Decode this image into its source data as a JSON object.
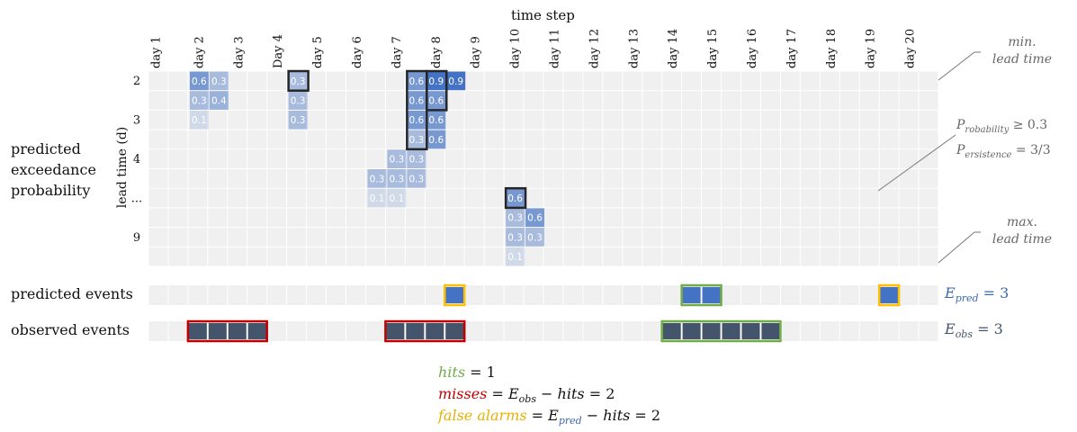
{
  "header": {
    "time_step_label": "time step"
  },
  "days": [
    "day 1",
    "day 2",
    "day 3",
    "Day 4",
    "day 5",
    "day 6",
    "day 7",
    "day 8",
    "day 9",
    "day 10",
    "day 11",
    "day 12",
    "day 13",
    "day 14",
    "day 15",
    "day 16",
    "day 17",
    "day 18",
    "day 19",
    "day 20"
  ],
  "y_axis": {
    "label": "lead time (d)",
    "ticks": [
      {
        "row": 0,
        "text": "2"
      },
      {
        "row": 2,
        "text": "3"
      },
      {
        "row": 4,
        "text": "4"
      },
      {
        "row": 6,
        "text": "..."
      },
      {
        "row": 8,
        "text": "9"
      }
    ]
  },
  "row_labels": {
    "probability": "predicted exceedance probability",
    "predicted": "predicted events",
    "observed": "observed events"
  },
  "probability_cells": [
    {
      "day": 3,
      "lead": 0,
      "value": "0.6"
    },
    {
      "day": 4,
      "lead": 0,
      "value": "0.3"
    },
    {
      "day": 3,
      "lead": 1,
      "value": "0.3"
    },
    {
      "day": 4,
      "lead": 1,
      "value": "0.4"
    },
    {
      "day": 3,
      "lead": 2,
      "value": "0.1"
    },
    {
      "day": 8,
      "lead": 0,
      "value": "0.3"
    },
    {
      "day": 8,
      "lead": 1,
      "value": "0.3"
    },
    {
      "day": 8,
      "lead": 2,
      "value": "0.3"
    },
    {
      "day": 14,
      "lead": 0,
      "value": "0.6"
    },
    {
      "day": 15,
      "lead": 0,
      "value": "0.9"
    },
    {
      "day": 16,
      "lead": 0,
      "value": "0.9"
    },
    {
      "day": 14,
      "lead": 1,
      "value": "0.6"
    },
    {
      "day": 15,
      "lead": 1,
      "value": "0.6"
    },
    {
      "day": 14,
      "lead": 2,
      "value": "0.6"
    },
    {
      "day": 15,
      "lead": 2,
      "value": "0.6"
    },
    {
      "day": 14,
      "lead": 3,
      "value": "0.3"
    },
    {
      "day": 15,
      "lead": 3,
      "value": "0.6"
    },
    {
      "day": 13,
      "lead": 4,
      "value": "0.3"
    },
    {
      "day": 14,
      "lead": 4,
      "value": "0.3"
    },
    {
      "day": 12,
      "lead": 5,
      "value": "0.3"
    },
    {
      "day": 13,
      "lead": 5,
      "value": "0.3"
    },
    {
      "day": 14,
      "lead": 5,
      "value": "0.3"
    },
    {
      "day": 12,
      "lead": 6,
      "value": "0.1"
    },
    {
      "day": 13,
      "lead": 6,
      "value": "0.1"
    },
    {
      "day": 19,
      "lead": 6,
      "value": "0.6"
    },
    {
      "day": 19,
      "lead": 7,
      "value": "0.3"
    },
    {
      "day": 20,
      "lead": 7,
      "value": "0.6"
    },
    {
      "day": 19,
      "lead": 8,
      "value": "0.3"
    },
    {
      "day": 20,
      "lead": 8,
      "value": "0.3"
    },
    {
      "day": 19,
      "lead": 9,
      "value": "0.1"
    }
  ],
  "highlight_boxes": [
    {
      "day_start": 8,
      "day_end": 8,
      "lead_start": 0,
      "lead_end": 0
    },
    {
      "day_start": 14,
      "day_end": 14,
      "lead_start": 0,
      "lead_end": 3
    },
    {
      "day_start": 15,
      "day_end": 15,
      "lead_start": 0,
      "lead_end": 1
    },
    {
      "day_start": 19,
      "day_end": 19,
      "lead_start": 6,
      "lead_end": 6
    }
  ],
  "predicted_events": [
    {
      "day_start": 8,
      "day_end": 8,
      "outcome": "false_alarm"
    },
    {
      "day_start": 14,
      "day_end": 15,
      "outcome": "hit"
    },
    {
      "day_start": 19,
      "day_end": 19,
      "outcome": "false_alarm"
    }
  ],
  "observed_events": [
    {
      "day_start": 2,
      "day_end": 3,
      "outcome": "miss"
    },
    {
      "day_start": 7,
      "day_end": 8,
      "outcome": "miss"
    },
    {
      "day_start": 14,
      "day_end": 16,
      "outcome": "hit"
    }
  ],
  "annotations": {
    "min_lead": [
      "min.",
      "lead time"
    ],
    "max_lead": [
      "max.",
      "lead time"
    ],
    "criteria_line1": {
      "P": "P",
      "sub": "robability",
      "rest": " ≥ 0.3"
    },
    "criteria_line2": {
      "P": "P",
      "sub": "ersistence",
      "rest": " = 3/3"
    }
  },
  "totals": {
    "pred": {
      "E": "E",
      "sub": "pred",
      "rest": " = 3"
    },
    "obs": {
      "E": "E",
      "sub": "obs",
      "rest": " = 3"
    }
  },
  "formulas": {
    "hits": {
      "name": "hits",
      "rest": " = 1"
    },
    "misses": {
      "name": "misses",
      "eq": " = ",
      "E": "E",
      "sub": "obs",
      "minus": " − ",
      "hits": "hits",
      "rest": " = 2"
    },
    "false_alarms": {
      "name": "false alarms",
      "eq": " = ",
      "E": "E",
      "sub": "pred",
      "minus": " − ",
      "hits": "hits",
      "rest": " = 2"
    }
  },
  "colors": {
    "grid_bg": "#f0f0f0",
    "cell_dark": "#4472c4",
    "event_fill": "#4472c4",
    "observed_fill": "#44546a",
    "highlight_border": "#262626",
    "hit": "#70ad47",
    "miss": "#c00000",
    "false_alarm": "#ffc000",
    "total_blue": "#3a68b3"
  }
}
